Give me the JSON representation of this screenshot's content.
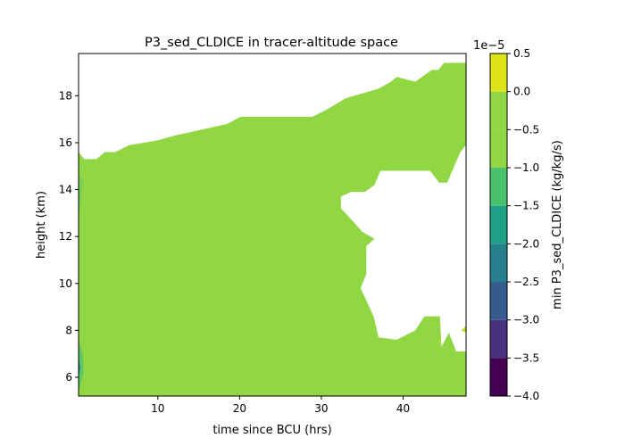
{
  "chart_data": {
    "type": "heatmap",
    "title": "P3_sed_CLDICE in tracer-altitude space",
    "xlabel": "time since BCU (hrs)",
    "ylabel": "height (km)",
    "xlim": [
      0.3,
      47.7
    ],
    "ylim": [
      5.2,
      19.8
    ],
    "x_ticks": [
      10,
      20,
      30,
      40
    ],
    "y_ticks": [
      6,
      8,
      10,
      12,
      14,
      16,
      18
    ],
    "grid": false,
    "dominant_band": [
      -5e-06,
      0
    ],
    "dominant_color": "#90d743",
    "region_outline": [
      [
        0.3,
        5.2
      ],
      [
        47.7,
        5.2
      ],
      [
        47.7,
        7.1
      ],
      [
        46.5,
        7.1
      ],
      [
        45.6,
        7.9
      ],
      [
        44.7,
        7.3
      ],
      [
        44.5,
        8.6
      ],
      [
        42.6,
        8.6
      ],
      [
        41.5,
        8.0
      ],
      [
        39.2,
        7.6
      ],
      [
        37.0,
        7.7
      ],
      [
        36.4,
        8.6
      ],
      [
        34.8,
        9.8
      ],
      [
        35.5,
        10.4
      ],
      [
        35.5,
        11.6
      ],
      [
        36.5,
        11.9
      ],
      [
        35.0,
        12.2
      ],
      [
        34.0,
        12.6
      ],
      [
        32.4,
        13.2
      ],
      [
        32.4,
        13.7
      ],
      [
        33.6,
        13.9
      ],
      [
        35.3,
        13.9
      ],
      [
        36.5,
        14.2
      ],
      [
        37.2,
        14.8
      ],
      [
        43.3,
        14.8
      ],
      [
        44.4,
        14.3
      ],
      [
        45.4,
        14.3
      ],
      [
        47.0,
        15.6
      ],
      [
        47.7,
        15.9
      ],
      [
        47.7,
        19.4
      ],
      [
        45.0,
        19.4
      ],
      [
        44.3,
        19.1
      ],
      [
        43.5,
        19.1
      ],
      [
        41.5,
        18.6
      ],
      [
        39.2,
        18.8
      ],
      [
        38.5,
        18.6
      ],
      [
        37.0,
        18.3
      ],
      [
        33.0,
        17.9
      ],
      [
        30.6,
        17.4
      ],
      [
        28.9,
        17.1
      ],
      [
        20.1,
        17.1
      ],
      [
        18.5,
        16.8
      ],
      [
        12.0,
        16.3
      ],
      [
        10.0,
        16.1
      ],
      [
        8.4,
        16.0
      ],
      [
        6.5,
        15.9
      ],
      [
        4.8,
        15.6
      ],
      [
        3.5,
        15.6
      ],
      [
        2.5,
        15.3
      ],
      [
        1.0,
        15.3
      ],
      [
        0.3,
        15.6
      ]
    ],
    "low_value_patches": [
      {
        "outline": [
          [
            0.3,
            14.6
          ],
          [
            0.9,
            14.4
          ],
          [
            0.6,
            13.5
          ],
          [
            0.3,
            13.0
          ]
        ],
        "color": "#75d054"
      },
      {
        "outline": [
          [
            0.3,
            7.6
          ],
          [
            0.8,
            7.0
          ],
          [
            0.9,
            6.2
          ],
          [
            0.4,
            5.5
          ],
          [
            0.3,
            5.5
          ]
        ],
        "color": "#5cc863"
      },
      {
        "outline": [
          [
            0.3,
            6.9
          ],
          [
            0.5,
            6.4
          ],
          [
            0.3,
            6.0
          ]
        ],
        "color": "#2a788e"
      }
    ],
    "high_value_patches": [
      {
        "outline": [
          [
            47.1,
            8.0
          ],
          [
            47.7,
            7.9
          ],
          [
            47.7,
            8.2
          ]
        ],
        "color": "#c8e020"
      },
      {
        "outline": [
          [
            44.3,
            7.5
          ],
          [
            44.6,
            7.5
          ],
          [
            44.5,
            7.6
          ]
        ],
        "color": "#dde318"
      }
    ],
    "colorbar": {
      "label": "min P3_sed_CLDICE (kg/kg/s)",
      "offset_text": "1e−5",
      "levels": [
        -4.0,
        -3.5,
        -3.0,
        -2.5,
        -2.0,
        -1.5,
        -1.0,
        -0.5,
        0.0,
        0.5
      ],
      "tick_labels": [
        "−4.0",
        "−3.5",
        "−3.0",
        "−2.5",
        "−2.0",
        "−1.5",
        "−1.0",
        "−0.5",
        "0.0",
        "0.5"
      ],
      "colors": [
        "#440154",
        "#46327e",
        "#365c8d",
        "#277f8e",
        "#1fa187",
        "#4ac16d",
        "#90d743",
        "#90d743",
        "#dde318"
      ]
    },
    "x_tick_labels": [
      "10",
      "20",
      "30",
      "40"
    ],
    "y_tick_labels": [
      "6",
      "8",
      "10",
      "12",
      "14",
      "16",
      "18"
    ]
  }
}
